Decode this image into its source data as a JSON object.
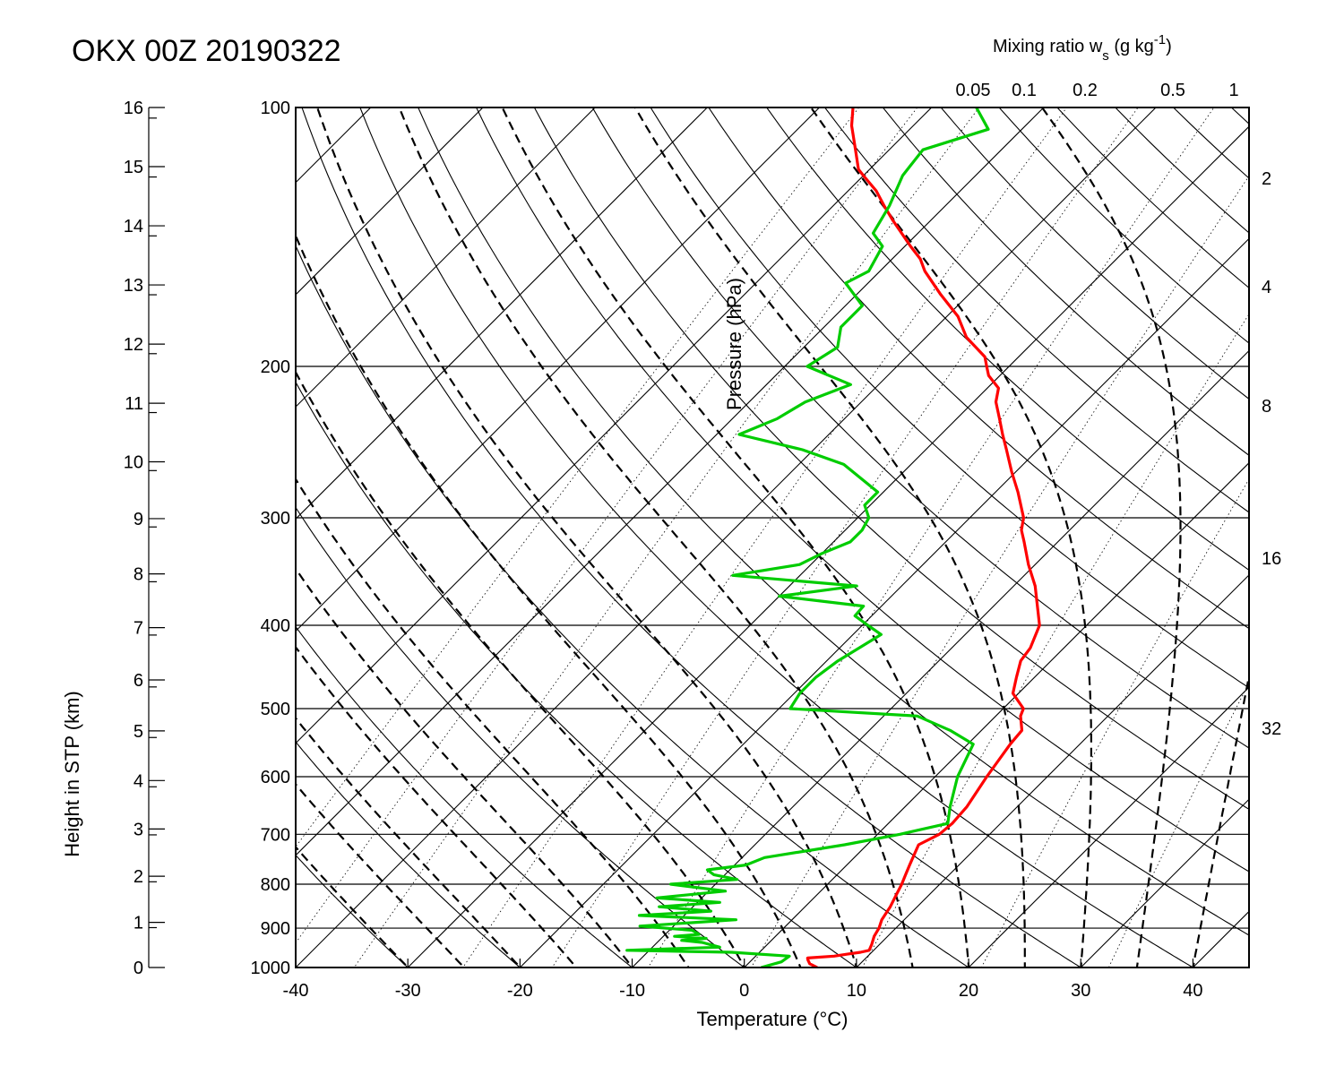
{
  "chart_data": {
    "type": "line",
    "title": "OKX 00Z 20190322",
    "xlabel": "Temperature (°C)",
    "ylabel": "Pressure (hPa)",
    "y2label": "Height in STP (km)",
    "mixing_ratio_label": "Mixing ratio w",
    "mixing_ratio_sub": "s",
    "mixing_ratio_units": "(g kg",
    "mixing_ratio_sup": "-1",
    "mixing_ratio_close": ")",
    "xlim": [
      -40,
      45
    ],
    "ylim": [
      1000,
      100
    ],
    "x_ticks": [
      -40,
      -30,
      -20,
      -10,
      0,
      10,
      20,
      30,
      40
    ],
    "p_ticks": [
      1000,
      900,
      800,
      700,
      600,
      500,
      400,
      300,
      200,
      100
    ],
    "height_ticks": [
      0,
      1,
      2,
      3,
      4,
      5,
      6,
      7,
      8,
      9,
      10,
      11,
      12,
      13,
      14,
      15,
      16
    ],
    "mixing_ratio_top_labels": [
      "0.05",
      "0.1",
      "0.2",
      "0.5",
      "1"
    ],
    "mixing_ratio_right_labels": [
      "2",
      "4",
      "8",
      "16",
      "32"
    ],
    "pressure_scale": "log",
    "colors": {
      "temperature": "#ff0000",
      "dewpoint": "#00cc00",
      "background": "#000000"
    },
    "series": [
      {
        "key": "temperature",
        "points": [
          [
            1000,
            6.5
          ],
          [
            990,
            5.5
          ],
          [
            980,
            5.0
          ],
          [
            975,
            4.8
          ],
          [
            970,
            7.0
          ],
          [
            965,
            8.0
          ],
          [
            960,
            9.0
          ],
          [
            955,
            9.6
          ],
          [
            940,
            9.3
          ],
          [
            920,
            8.8
          ],
          [
            900,
            8.5
          ],
          [
            880,
            8.0
          ],
          [
            850,
            7.6
          ],
          [
            820,
            7.0
          ],
          [
            800,
            6.6
          ],
          [
            780,
            6.1
          ],
          [
            760,
            5.6
          ],
          [
            740,
            5.1
          ],
          [
            720,
            4.6
          ],
          [
            700,
            5.5
          ],
          [
            680,
            5.7
          ],
          [
            650,
            5.5
          ],
          [
            600,
            4.6
          ],
          [
            550,
            3.8
          ],
          [
            530,
            3.6
          ],
          [
            510,
            2.2
          ],
          [
            500,
            1.8
          ],
          [
            480,
            -0.5
          ],
          [
            460,
            -1.6
          ],
          [
            440,
            -2.7
          ],
          [
            425,
            -3.0
          ],
          [
            400,
            -4.2
          ],
          [
            380,
            -6.1
          ],
          [
            360,
            -8.1
          ],
          [
            340,
            -10.6
          ],
          [
            320,
            -13.0
          ],
          [
            310,
            -14.3
          ],
          [
            300,
            -15.2
          ],
          [
            280,
            -18.0
          ],
          [
            265,
            -20.4
          ],
          [
            250,
            -22.8
          ],
          [
            240,
            -24.5
          ],
          [
            230,
            -26.2
          ],
          [
            220,
            -28.0
          ],
          [
            212,
            -29.0
          ],
          [
            205,
            -31.0
          ],
          [
            200,
            -32.0
          ],
          [
            195,
            -33.0
          ],
          [
            185,
            -36.4
          ],
          [
            175,
            -39.0
          ],
          [
            165,
            -42.5
          ],
          [
            155,
            -46.0
          ],
          [
            150,
            -47.5
          ],
          [
            145,
            -49.5
          ],
          [
            135,
            -53.5
          ],
          [
            130,
            -55.5
          ],
          [
            125,
            -57.5
          ],
          [
            120,
            -60.0
          ],
          [
            118,
            -61.0
          ],
          [
            112,
            -63.0
          ],
          [
            105,
            -65.5
          ],
          [
            100,
            -67.0
          ]
        ]
      },
      {
        "key": "dewpoint",
        "points": [
          [
            1000,
            1.5
          ],
          [
            985,
            2.8
          ],
          [
            970,
            3.0
          ],
          [
            960,
            -2.5
          ],
          [
            955,
            -12.0
          ],
          [
            947,
            -4.0
          ],
          [
            935,
            -6.0
          ],
          [
            930,
            -8.0
          ],
          [
            925,
            -6.0
          ],
          [
            920,
            -9.0
          ],
          [
            915,
            -7.0
          ],
          [
            905,
            -8.0
          ],
          [
            895,
            -13.0
          ],
          [
            880,
            -5.0
          ],
          [
            870,
            -14.0
          ],
          [
            860,
            -8.0
          ],
          [
            850,
            -13.0
          ],
          [
            840,
            -8.0
          ],
          [
            830,
            -14.0
          ],
          [
            815,
            -8.5
          ],
          [
            800,
            -14.0
          ],
          [
            790,
            -8.5
          ],
          [
            780,
            -11.0
          ],
          [
            770,
            -12.0
          ],
          [
            760,
            -9.0
          ],
          [
            745,
            -8.0
          ],
          [
            720,
            -2.0
          ],
          [
            700,
            2.0
          ],
          [
            680,
            5.3
          ],
          [
            650,
            4.0
          ],
          [
            600,
            2.0
          ],
          [
            550,
            0.5
          ],
          [
            530,
            -2.8
          ],
          [
            510,
            -7.0
          ],
          [
            500,
            -19.0
          ],
          [
            480,
            -19.5
          ],
          [
            460,
            -19.5
          ],
          [
            440,
            -19.0
          ],
          [
            420,
            -18.0
          ],
          [
            410,
            -17.5
          ],
          [
            400,
            -19.5
          ],
          [
            390,
            -21.5
          ],
          [
            380,
            -21.6
          ],
          [
            370,
            -30.0
          ],
          [
            360,
            -24.0
          ],
          [
            350,
            -36.0
          ],
          [
            340,
            -31.0
          ],
          [
            330,
            -30.0
          ],
          [
            320,
            -28.5
          ],
          [
            310,
            -28.5
          ],
          [
            300,
            -29.0
          ],
          [
            290,
            -30.5
          ],
          [
            280,
            -30.5
          ],
          [
            260,
            -36.0
          ],
          [
            250,
            -41.0
          ],
          [
            240,
            -48.0
          ],
          [
            230,
            -46.0
          ],
          [
            220,
            -45.0
          ],
          [
            210,
            -42.5
          ],
          [
            200,
            -48.0
          ],
          [
            190,
            -47.0
          ],
          [
            180,
            -48.5
          ],
          [
            170,
            -48.5
          ],
          [
            160,
            -52.0
          ],
          [
            155,
            -51.0
          ],
          [
            145,
            -52.0
          ],
          [
            140,
            -54.0
          ],
          [
            130,
            -55.0
          ],
          [
            120,
            -56.5
          ],
          [
            112,
            -57.0
          ],
          [
            106,
            -53.0
          ],
          [
            100,
            -56.0
          ]
        ]
      }
    ]
  }
}
